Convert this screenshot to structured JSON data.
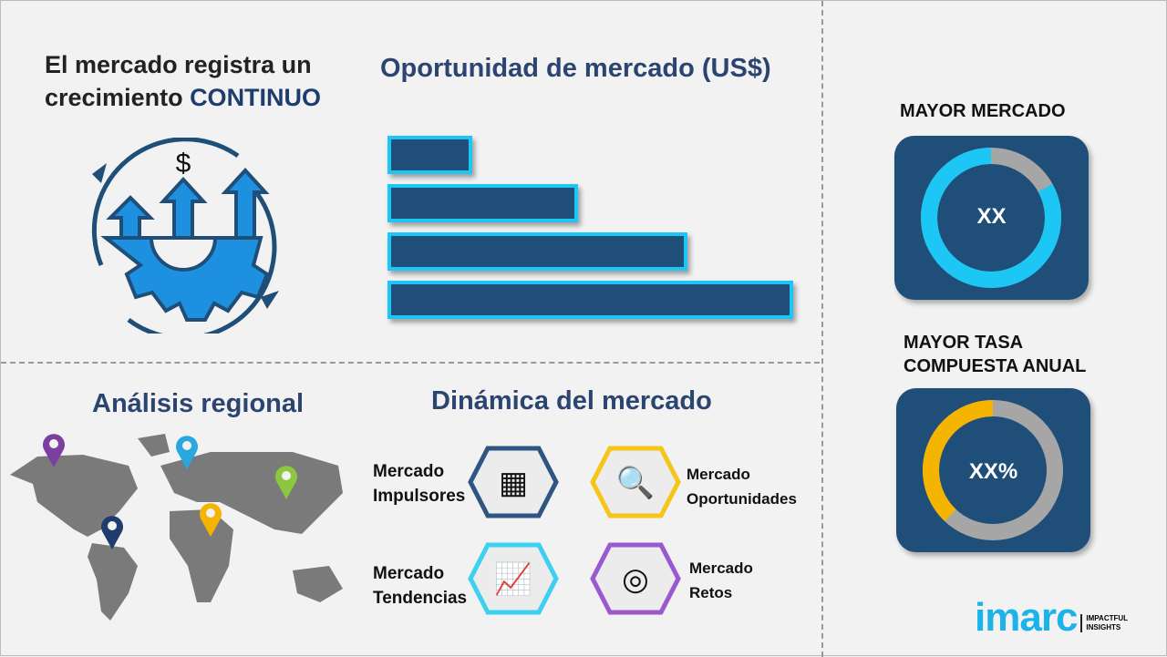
{
  "growth": {
    "line1": "El mercado registra un",
    "line2": "crecimiento ",
    "highlight": "CONTINUO",
    "icon": "growth-gear-icon"
  },
  "opportunity": {
    "title": "Oportunidad de mercado (US$)",
    "bars": [
      21,
      47,
      74,
      100
    ],
    "bar_color": "#1f4e79",
    "bar_border": "#1cc6f5"
  },
  "regional": {
    "title": "Análisis regional",
    "pins": [
      {
        "color": "#7b3fa0"
      },
      {
        "color": "#29a8e0"
      },
      {
        "color": "#8dc63f"
      },
      {
        "color": "#f5b400"
      },
      {
        "color": "#1f3c6e"
      }
    ]
  },
  "dynamics": {
    "title": "Dinámica del mercado",
    "items": [
      {
        "line1": "Mercado",
        "line2": "Impulsores",
        "color": "#2f5583",
        "icon": "puzzle-icon"
      },
      {
        "line1": "Mercado",
        "line2": "Oportunidades",
        "color": "#f5c518",
        "icon": "magnifier-dollar-icon"
      },
      {
        "line1": "Mercado",
        "line2": "Tendencias",
        "color": "#3dd0f0",
        "icon": "bar-chart-trend-icon"
      },
      {
        "line1": "Mercado",
        "line2": "Retos",
        "color": "#9b59d0",
        "icon": "target-icon"
      }
    ]
  },
  "largest": {
    "title": "MAYOR MERCADO",
    "value": "XX",
    "fill_percent": 83,
    "color": "#1cc6f5"
  },
  "cagr": {
    "title_line1": "MAYOR TASA",
    "title_line2": "COMPUESTA ANUAL",
    "value": "XX%",
    "fill_percent": 38,
    "color": "#f5b400"
  },
  "logo": {
    "brand": "imarc",
    "tagline1": "IMPACTFUL",
    "tagline2": "INSIGHTS",
    "color": "#1cb4e8"
  }
}
